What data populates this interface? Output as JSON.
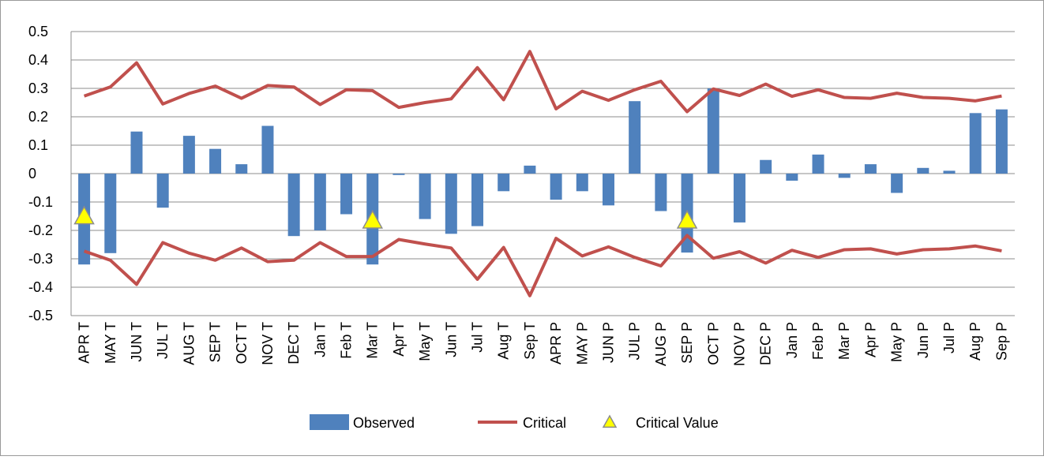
{
  "chart_data": {
    "type": "bar",
    "categories": [
      "APR T",
      "MAY T",
      "JUN T",
      "JUL T",
      "AUG T",
      "SEP T",
      "OCT T",
      "NOV T",
      "DEC T",
      "Jan T",
      "Feb T",
      "Mar T",
      "Apr T",
      "May T",
      "Jun T",
      "Jul T",
      "Aug T",
      "Sep T",
      "APR P",
      "MAY P",
      "JUN P",
      "JUL P",
      "AUG P",
      "SEP P",
      "OCT P",
      "NOV P",
      "DEC P",
      "Jan P",
      "Feb P",
      "Mar P",
      "Apr P",
      "May P",
      "Jun P",
      "Jul P",
      "Aug P",
      "Sep P"
    ],
    "series": [
      {
        "name": "Observed",
        "mark": "bar",
        "color": "#4f81bd",
        "values": [
          -0.32,
          -0.28,
          0.148,
          -0.12,
          0.133,
          0.087,
          0.033,
          0.168,
          -0.22,
          -0.2,
          -0.143,
          -0.32,
          -0.005,
          -0.16,
          -0.212,
          -0.185,
          -0.062,
          0.028,
          -0.092,
          -0.062,
          -0.112,
          0.255,
          -0.132,
          -0.278,
          0.3,
          -0.172,
          0.048,
          -0.025,
          0.067,
          -0.015,
          0.033,
          -0.068,
          0.02,
          0.01,
          0.213,
          0.226
        ]
      },
      {
        "name": "Critical",
        "mark": "line",
        "color": "#c0504d",
        "values": [
          0.273,
          0.305,
          0.39,
          0.245,
          0.282,
          0.308,
          0.265,
          0.31,
          0.305,
          0.243,
          0.295,
          0.292,
          0.233,
          0.25,
          0.263,
          0.373,
          0.26,
          0.43,
          0.228,
          0.29,
          0.258,
          0.295,
          0.325,
          0.218,
          0.298,
          0.275,
          0.315,
          0.272,
          0.295,
          0.268,
          0.265,
          0.283,
          0.268,
          0.265,
          0.256,
          0.273
        ],
        "lower_values": [
          -0.273,
          -0.305,
          -0.39,
          -0.243,
          -0.28,
          -0.305,
          -0.262,
          -0.31,
          -0.305,
          -0.243,
          -0.292,
          -0.292,
          -0.232,
          -0.248,
          -0.262,
          -0.372,
          -0.26,
          -0.43,
          -0.228,
          -0.29,
          -0.258,
          -0.295,
          -0.325,
          -0.218,
          -0.298,
          -0.275,
          -0.315,
          -0.27,
          -0.295,
          -0.268,
          -0.265,
          -0.283,
          -0.268,
          -0.265,
          -0.255,
          -0.272
        ]
      },
      {
        "name": "Critical Value",
        "mark": "triangle",
        "color": "#ffff00",
        "values": [
          -0.15,
          null,
          null,
          null,
          null,
          null,
          null,
          null,
          null,
          null,
          null,
          -0.165,
          null,
          null,
          null,
          null,
          null,
          null,
          null,
          null,
          null,
          null,
          null,
          -0.165,
          null,
          null,
          null,
          null,
          null,
          null,
          null,
          null,
          null,
          null,
          null,
          null
        ]
      }
    ],
    "ylim": [
      -0.5,
      0.5
    ],
    "yticks": [
      -0.5,
      -0.4,
      -0.3,
      -0.2,
      -0.1,
      0,
      0.1,
      0.2,
      0.3,
      0.4,
      0.5
    ],
    "grid": true
  }
}
